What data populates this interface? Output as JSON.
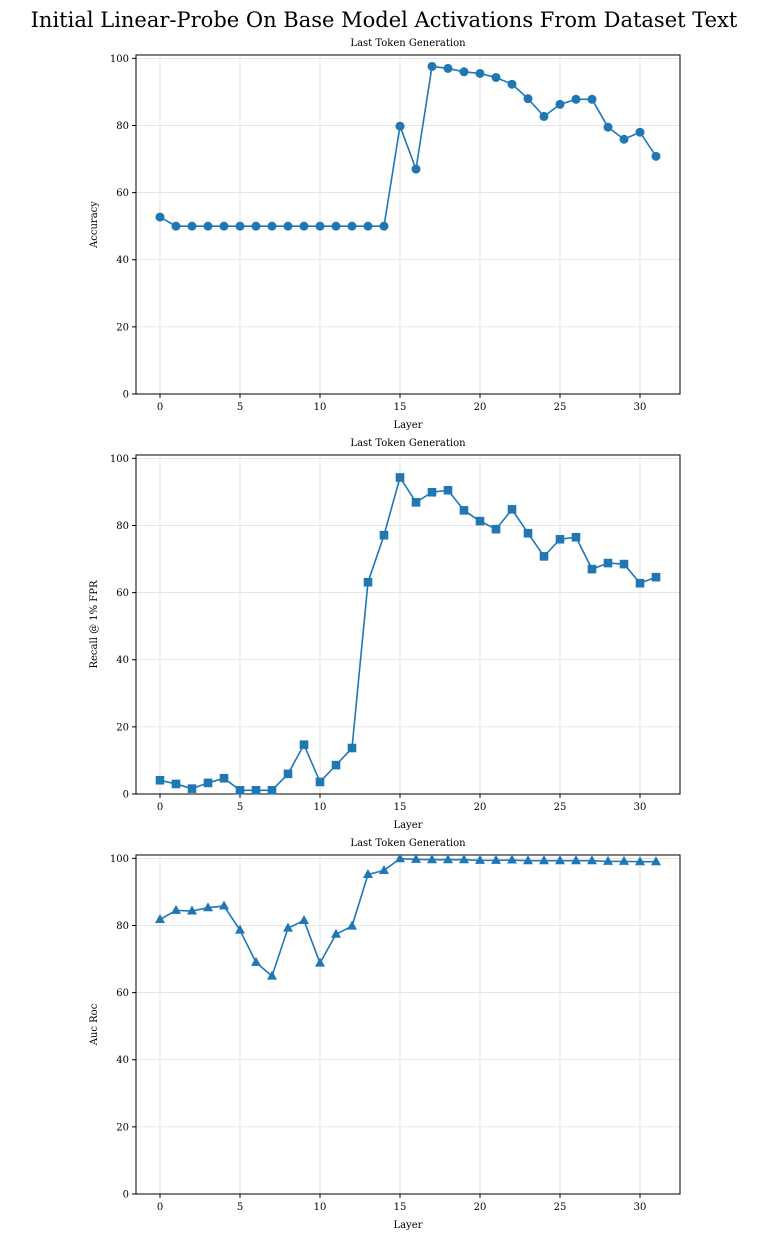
{
  "title": "Initial Linear-Probe On Base Model Activations From Dataset Text",
  "color": "#1f77b4",
  "chart_data": [
    {
      "type": "line",
      "title": "Last Token Generation",
      "xlabel": "Layer",
      "ylabel": "Accuracy",
      "marker": "circle",
      "xlim": [
        -1.5,
        32.5
      ],
      "ylim": [
        0,
        101
      ],
      "xticks": [
        0,
        5,
        10,
        15,
        20,
        25,
        30
      ],
      "yticks": [
        0,
        20,
        40,
        60,
        80,
        100
      ],
      "grid": true,
      "x": [
        0,
        1,
        2,
        3,
        4,
        5,
        6,
        7,
        8,
        9,
        10,
        11,
        12,
        13,
        14,
        15,
        16,
        17,
        18,
        19,
        20,
        21,
        22,
        23,
        24,
        25,
        26,
        27,
        28,
        29,
        30,
        31
      ],
      "values": [
        52.7,
        50,
        50,
        50,
        50,
        50,
        50,
        50,
        50,
        50,
        50,
        50,
        50,
        50,
        50,
        79.8,
        67,
        97.6,
        97,
        96,
        95.5,
        94.3,
        92.3,
        88,
        82.7,
        86.3,
        87.8,
        87.8,
        79.5,
        75.9,
        78,
        70.8
      ]
    },
    {
      "type": "line",
      "title": "Last Token Generation",
      "xlabel": "Layer",
      "ylabel": "Recall @ 1% FPR",
      "marker": "square",
      "xlim": [
        -1.5,
        32.5
      ],
      "ylim": [
        0,
        101
      ],
      "xticks": [
        0,
        5,
        10,
        15,
        20,
        25,
        30
      ],
      "yticks": [
        0,
        20,
        40,
        60,
        80,
        100
      ],
      "grid": true,
      "x": [
        0,
        1,
        2,
        3,
        4,
        5,
        6,
        7,
        8,
        9,
        10,
        11,
        12,
        13,
        14,
        15,
        16,
        17,
        18,
        19,
        20,
        21,
        22,
        23,
        24,
        25,
        26,
        27,
        28,
        29,
        30,
        31
      ],
      "values": [
        4.1,
        3,
        1.6,
        3.3,
        4.7,
        1.1,
        1.1,
        1.1,
        6,
        14.7,
        3.6,
        8.6,
        13.7,
        63.1,
        77.1,
        94.3,
        86.9,
        89.9,
        90.5,
        84.5,
        81.3,
        78.9,
        84.8,
        77.7,
        70.8,
        75.9,
        76.5,
        67,
        68.8,
        68.5,
        62.8,
        64.6
      ]
    },
    {
      "type": "line",
      "title": "Last Token Generation",
      "xlabel": "Layer",
      "ylabel": "Auc Roc",
      "marker": "triangle",
      "xlim": [
        -1.5,
        32.5
      ],
      "ylim": [
        0,
        101
      ],
      "xticks": [
        0,
        5,
        10,
        15,
        20,
        25,
        30
      ],
      "yticks": [
        0,
        20,
        40,
        60,
        80,
        100
      ],
      "grid": true,
      "x": [
        0,
        1,
        2,
        3,
        4,
        5,
        6,
        7,
        8,
        9,
        10,
        11,
        12,
        13,
        14,
        15,
        16,
        17,
        18,
        19,
        20,
        21,
        22,
        23,
        24,
        25,
        26,
        27,
        28,
        29,
        30,
        31
      ],
      "values": [
        81.8,
        84.5,
        84.3,
        85.3,
        85.8,
        78.6,
        69,
        64.9,
        79.2,
        81.5,
        68.8,
        77.4,
        79.8,
        95.2,
        96.4,
        99.9,
        99.7,
        99.6,
        99.6,
        99.6,
        99.4,
        99.4,
        99.5,
        99.3,
        99.3,
        99.3,
        99.3,
        99.3,
        99.1,
        99.1,
        99.0,
        99.0
      ]
    }
  ]
}
